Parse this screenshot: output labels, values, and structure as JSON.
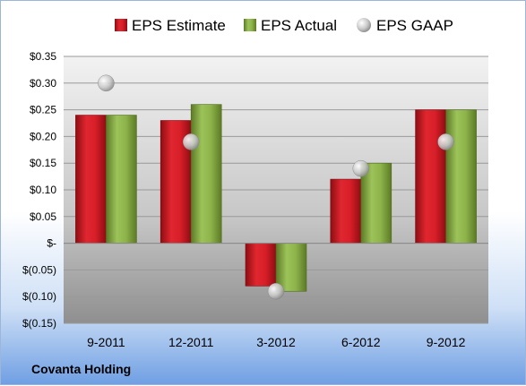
{
  "chart_data": {
    "type": "bar",
    "categories": [
      "9-2011",
      "12-2011",
      "3-2012",
      "6-2012",
      "9-2012"
    ],
    "series": [
      {
        "name": "EPS Estimate",
        "kind": "bar",
        "color": "#d81e28",
        "values": [
          0.24,
          0.23,
          -0.08,
          0.12,
          0.25
        ]
      },
      {
        "name": "EPS Actual",
        "kind": "bar",
        "color": "#8db34a",
        "values": [
          0.24,
          0.26,
          -0.09,
          0.15,
          0.25
        ]
      },
      {
        "name": "EPS GAAP",
        "kind": "scatter",
        "color": "#bfbfbf",
        "values": [
          0.3,
          0.19,
          -0.09,
          0.14,
          0.19
        ]
      }
    ],
    "y_ticks": [
      {
        "value": 0.35,
        "label": "$0.35"
      },
      {
        "value": 0.3,
        "label": "$0.30"
      },
      {
        "value": 0.25,
        "label": "$0.25"
      },
      {
        "value": 0.2,
        "label": "$0.20"
      },
      {
        "value": 0.15,
        "label": "$0.15"
      },
      {
        "value": 0.1,
        "label": "$0.10"
      },
      {
        "value": 0.05,
        "label": "$0.05"
      },
      {
        "value": 0,
        "label": "$-"
      },
      {
        "value": -0.05,
        "label": "$(0.05)"
      },
      {
        "value": -0.1,
        "label": "$(0.10)"
      },
      {
        "value": -0.15,
        "label": "$(0.15)"
      }
    ],
    "ylim": [
      -0.15,
      0.35
    ],
    "grid": true,
    "legend_position": "top",
    "footer_label": "Covanta Holding"
  }
}
